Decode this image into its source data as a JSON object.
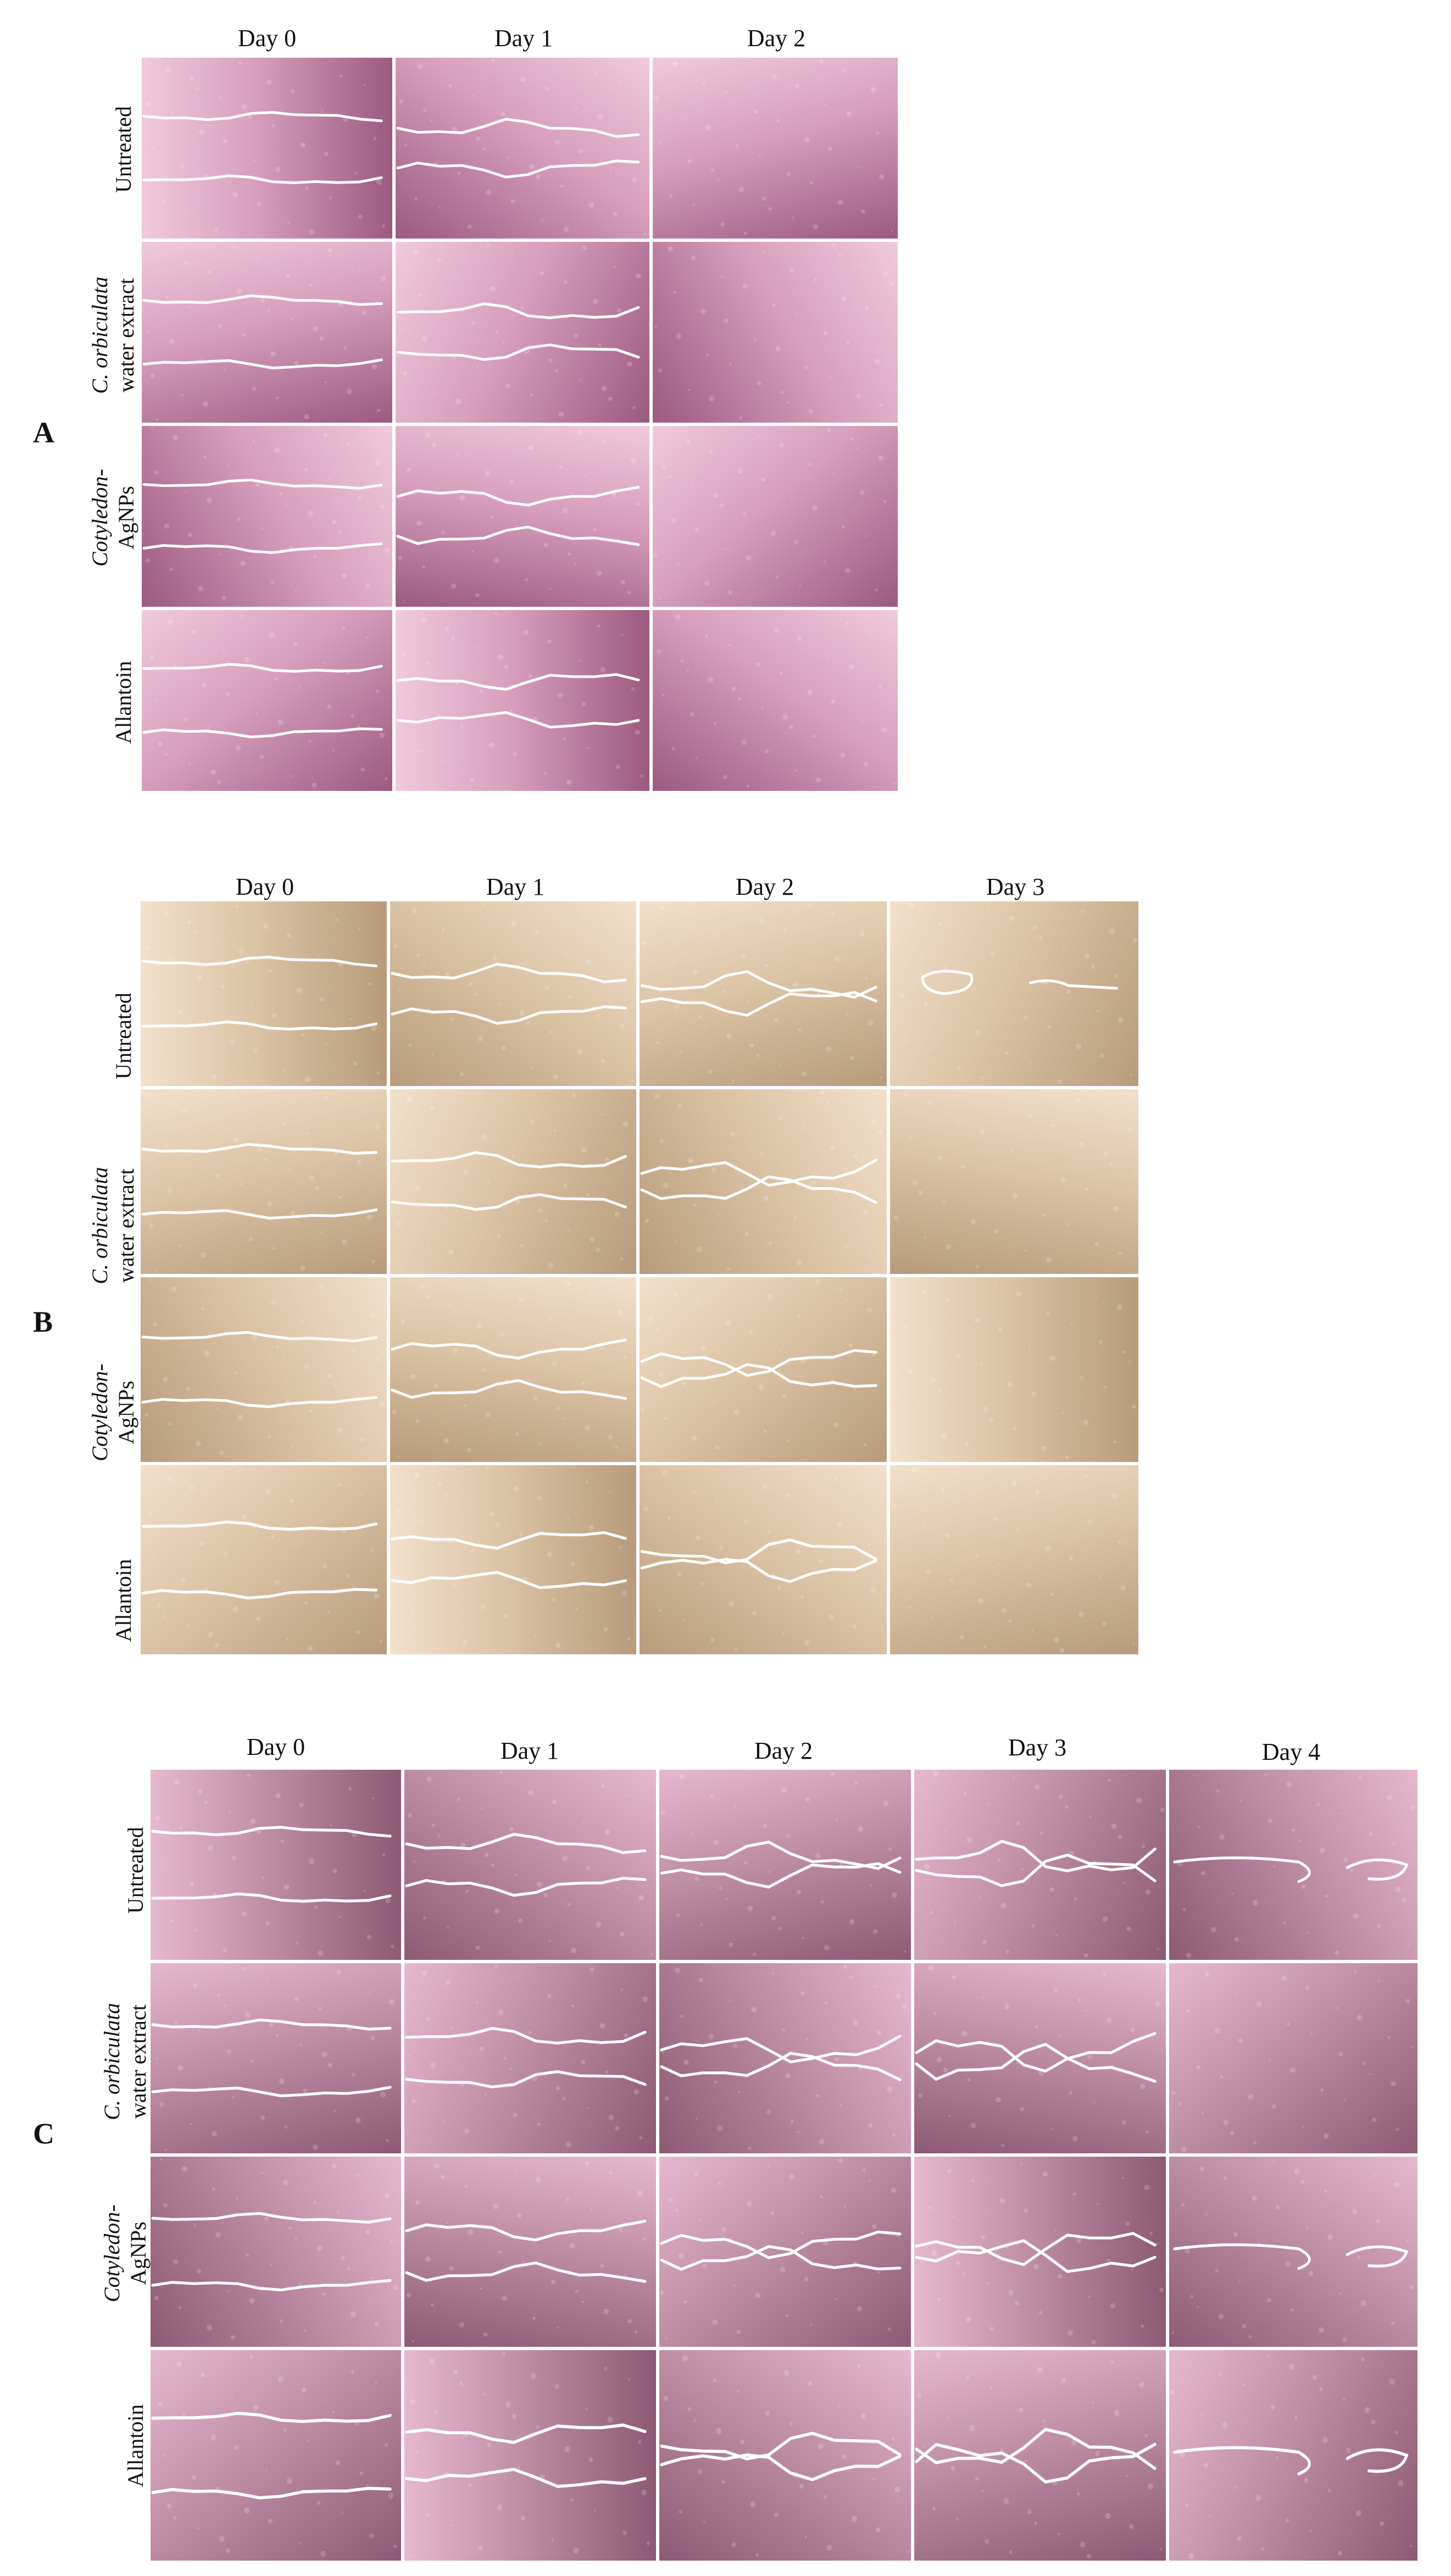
{
  "panels": [
    {
      "letter": "A",
      "columns": [
        "Day 0",
        "Day 1",
        "Day 2"
      ],
      "rows": [
        {
          "lines": [
            "Untreated"
          ],
          "italic": [
            false
          ]
        },
        {
          "lines": [
            "C. orbiculata",
            "water extract"
          ],
          "italic": [
            true,
            false
          ]
        },
        {
          "lines": [
            "Cotyledon-",
            "AgNPs"
          ],
          "italic": [
            true,
            false
          ]
        },
        {
          "lines": [
            "Allantoin"
          ],
          "italic": [
            false
          ]
        }
      ],
      "palette": {
        "base": "#d79fbd",
        "dark": "#9c5a80",
        "light": "#efc9dd"
      }
    },
    {
      "letter": "B",
      "columns": [
        "Day 0",
        "Day 1",
        "Day 2",
        "Day 3"
      ],
      "rows": [
        {
          "lines": [
            "Untreated"
          ],
          "italic": [
            false
          ]
        },
        {
          "lines": [
            "C. orbiculata",
            "water extract"
          ],
          "italic": [
            true,
            false
          ]
        },
        {
          "lines": [
            "Cotyledon-",
            "AgNPs"
          ],
          "italic": [
            true,
            false
          ]
        },
        {
          "lines": [
            "Allantoin"
          ],
          "italic": [
            false
          ]
        }
      ],
      "palette": {
        "base": "#dcc4a6",
        "dark": "#b79b7c",
        "light": "#f2e0cc"
      }
    },
    {
      "letter": "C",
      "columns": [
        "Day 0",
        "Day 1",
        "Day 2",
        "Day 3",
        "Day 4"
      ],
      "rows": [
        {
          "lines": [
            "Untreated"
          ],
          "italic": [
            false
          ]
        },
        {
          "lines": [
            "C. orbiculata",
            "water extract"
          ],
          "italic": [
            true,
            false
          ]
        },
        {
          "lines": [
            "Cotyledon-",
            "AgNPs"
          ],
          "italic": [
            true,
            false
          ]
        },
        {
          "lines": [
            "Allantoin"
          ],
          "italic": [
            false
          ]
        }
      ],
      "palette": {
        "base": "#bf8fa6",
        "dark": "#8c5a74",
        "light": "#e6b8cf"
      }
    }
  ]
}
